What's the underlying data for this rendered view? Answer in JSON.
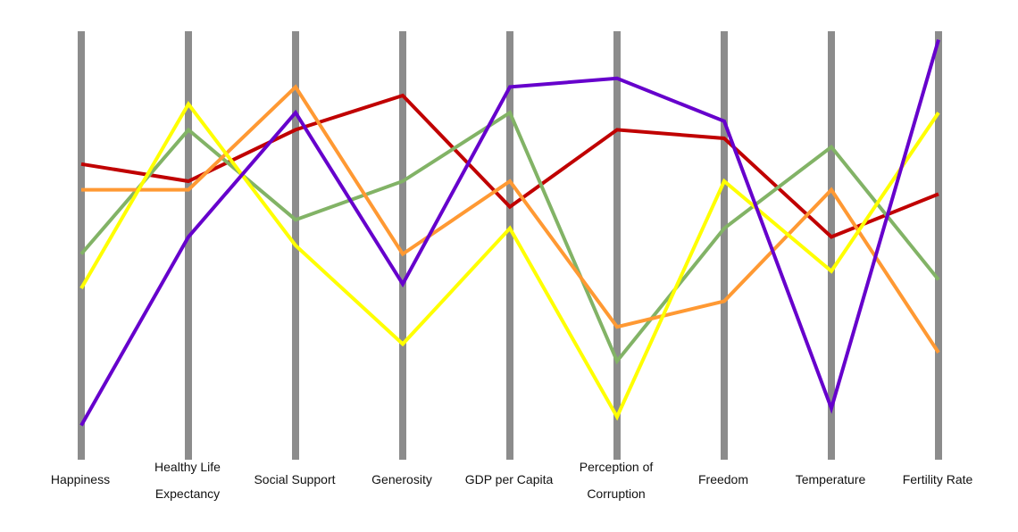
{
  "chart_data": {
    "type": "parallel-coordinates",
    "title": "",
    "axes": [
      {
        "label_lines": [
          "Happiness"
        ]
      },
      {
        "label_lines": [
          "Healthy Life",
          "Expectancy"
        ]
      },
      {
        "label_lines": [
          "Social Support"
        ]
      },
      {
        "label_lines": [
          "Generosity"
        ]
      },
      {
        "label_lines": [
          "GDP per Capita"
        ]
      },
      {
        "label_lines": [
          "Perception of",
          "Corruption"
        ]
      },
      {
        "label_lines": [
          "Freedom"
        ]
      },
      {
        "label_lines": [
          "Temperature"
        ]
      },
      {
        "label_lines": [
          "Fertility Rate"
        ]
      }
    ],
    "value_range": [
      0,
      1
    ],
    "grid": false,
    "legend": "none",
    "series": [
      {
        "color": "#c00000",
        "values": [
          0.69,
          0.65,
          0.77,
          0.85,
          0.59,
          0.77,
          0.75,
          0.52,
          0.62
        ]
      },
      {
        "color": "#82b366",
        "values": [
          0.48,
          0.77,
          0.56,
          0.65,
          0.81,
          0.23,
          0.54,
          0.73,
          0.42
        ]
      },
      {
        "color": "#ff9933",
        "values": [
          0.63,
          0.63,
          0.87,
          0.48,
          0.65,
          0.31,
          0.37,
          0.63,
          0.25
        ]
      },
      {
        "color": "#ffff00",
        "values": [
          0.4,
          0.83,
          0.5,
          0.27,
          0.54,
          0.1,
          0.65,
          0.44,
          0.81
        ]
      },
      {
        "color": "#6600cc",
        "values": [
          0.08,
          0.52,
          0.81,
          0.41,
          0.87,
          0.89,
          0.79,
          0.12,
          0.98
        ]
      }
    ]
  }
}
